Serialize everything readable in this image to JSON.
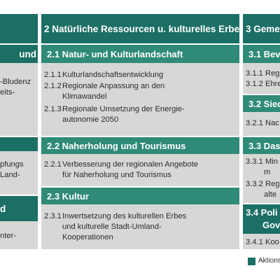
{
  "colors": {
    "dark_teal": "#1c6f65",
    "mid_teal": "#2f8a78",
    "panel_grey": "#d5d8d5"
  },
  "col1": {
    "head_a": "und",
    "item_a1": "-Bludenz",
    "item_a2": "eits-",
    "item_b1": "pfungs",
    "item_b2": "Land-",
    "head_c": "d",
    "item_c1": "nter-"
  },
  "col2": {
    "header": "2  Natürliche Ressourcen u. kulturelles Erbe",
    "sections": [
      {
        "title": "2.1  Natur- und Kulturlandschaft",
        "items": [
          {
            "num": "2.1.1",
            "lines": [
              "Kulturlandschaftsentwicklung"
            ]
          },
          {
            "num": "2.1.2",
            "lines": [
              "Regionale Anpassung an den",
              "Klimawandel"
            ]
          },
          {
            "num": "2.1.3",
            "lines": [
              "Regionale Umsetzung der Energie-",
              "autonomie 2050"
            ]
          }
        ]
      },
      {
        "title": "2.2  Naherholung und Tourismus",
        "items": [
          {
            "num": "2.2.1",
            "lines": [
              "Verbesserung der regionalen Angebote",
              "für Naherholung und Tourismus"
            ]
          }
        ]
      },
      {
        "title": "2.3  Kultur",
        "items": [
          {
            "num": "2.3.1",
            "lines": [
              "Inwertsetzung des kulturellen Erbes",
              "und kulturelle Stadt-Umland-",
              "Kooperationen"
            ]
          }
        ]
      }
    ]
  },
  "col3": {
    "header": "3  Geme",
    "s31": "3.1  Bev",
    "i311": "3.1.1  Reg",
    "i312": "3.1.2  Ehre",
    "s32": "3.2  Sied",
    "i321": "3.2.1  Nac",
    "s33": "3.3  Das",
    "i331a": "3.3.1  Min",
    "i331b": "m",
    "i332a": "3.3.2  Reg",
    "i332b": "alte",
    "s34a": "3.4  Poli",
    "s34b": "Gov",
    "i341": "3.4.1  Koo"
  },
  "legend": {
    "label": "Aktions"
  }
}
